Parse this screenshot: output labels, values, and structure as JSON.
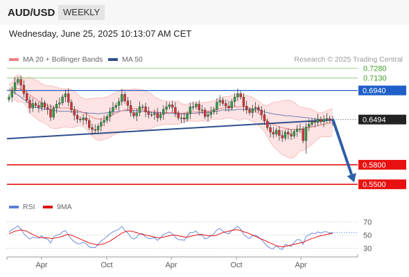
{
  "header": {
    "symbol": "AUD/USD",
    "period": "WEEKLY"
  },
  "datetime": "Wednesday, June 25, 2025 10:13:07 AM CET",
  "legend": {
    "ma20": {
      "label": "MA 20 + Bollinger Bands",
      "color": "#f08080"
    },
    "ma50": {
      "label": "MA 50",
      "color": "#2d4e8c"
    },
    "credit": "Research © 2025 Trading Central"
  },
  "rsi_legend": {
    "rsi": {
      "label": "RSI",
      "color": "#5b7fd6"
    },
    "ma": {
      "label": "9MA",
      "color": "#e01010"
    }
  },
  "chart_data": [
    {
      "type": "candlestick",
      "ylim": [
        0.53,
        0.735
      ],
      "x_ticks": [
        "Apr",
        "Oct",
        "Apr",
        "Oct",
        "Apr"
      ],
      "levels": [
        {
          "value": 0.728,
          "label": "0.7280",
          "kind": "target",
          "color": "#7fc76a"
        },
        {
          "value": 0.713,
          "label": "0.7130",
          "kind": "target",
          "color": "#7fc76a"
        },
        {
          "value": 0.694,
          "label": "0.6940",
          "kind": "resistance",
          "color": "#1f5fc9"
        },
        {
          "value": 0.6494,
          "label": "0.6494",
          "kind": "last",
          "color": "#222222"
        },
        {
          "value": 0.58,
          "label": "0.5800",
          "kind": "support",
          "color": "#e81010"
        },
        {
          "value": 0.55,
          "label": "0.5500",
          "kind": "support",
          "color": "#e81010"
        }
      ],
      "trendline": {
        "from": 0.62,
        "to": 0.649
      },
      "forecast_arrow": {
        "from": 0.65,
        "to": 0.553
      },
      "series": [
        {
          "name": "Price",
          "values": [
            0.684,
            0.694,
            0.706,
            0.711,
            0.702,
            0.689,
            0.679,
            0.667,
            0.674,
            0.671,
            0.668,
            0.675,
            0.668,
            0.665,
            0.653,
            0.667,
            0.673,
            0.675,
            0.684,
            0.689,
            0.676,
            0.664,
            0.656,
            0.65,
            0.649,
            0.652,
            0.648,
            0.637,
            0.634,
            0.633,
            0.639,
            0.645,
            0.648,
            0.654,
            0.662,
            0.668,
            0.671,
            0.677,
            0.688,
            0.678,
            0.671,
            0.66,
            0.655,
            0.66,
            0.669,
            0.669,
            0.661,
            0.657,
            0.657,
            0.659,
            0.652,
            0.657,
            0.665,
            0.669,
            0.672,
            0.668,
            0.659,
            0.652,
            0.652,
            0.65,
            0.658,
            0.669,
            0.669,
            0.673,
            0.664,
            0.664,
            0.654,
            0.657,
            0.661,
            0.665,
            0.676,
            0.679,
            0.674,
            0.67,
            0.667,
            0.677,
            0.684,
            0.689,
            0.684,
            0.67,
            0.664,
            0.66,
            0.666,
            0.668,
            0.664,
            0.657,
            0.647,
            0.637,
            0.63,
            0.627,
            0.633,
            0.625,
            0.621,
            0.63,
            0.627,
            0.624,
            0.631,
            0.635,
            0.635,
            0.617,
            0.638,
            0.642,
            0.646,
            0.645,
            0.65,
            0.646,
            0.65,
            0.651,
            0.648,
            0.649
          ]
        },
        {
          "name": "MA 50",
          "values": [
            0.695,
            0.693,
            0.69,
            0.687,
            0.684,
            0.68,
            0.677,
            0.673,
            0.67,
            0.668,
            0.667,
            0.666,
            0.665,
            0.665,
            0.664,
            0.663,
            0.663,
            0.662,
            0.662,
            0.662,
            0.662,
            0.661,
            0.661,
            0.661,
            0.661,
            0.66,
            0.66,
            0.659,
            0.659,
            0.659,
            0.658,
            0.659,
            0.659,
            0.66,
            0.66,
            0.661,
            0.661,
            0.662,
            0.663,
            0.663,
            0.663,
            0.663,
            0.663,
            0.663,
            0.662,
            0.662,
            0.662,
            0.661,
            0.66,
            0.66,
            0.66,
            0.659,
            0.659,
            0.659,
            0.659,
            0.659,
            0.658,
            0.658,
            0.658,
            0.658,
            0.658,
            0.659,
            0.659,
            0.659,
            0.66,
            0.66,
            0.66,
            0.66,
            0.661,
            0.662,
            0.662,
            0.663,
            0.664,
            0.664,
            0.664,
            0.664,
            0.664,
            0.665,
            0.665,
            0.665,
            0.665,
            0.665,
            0.665,
            0.664,
            0.664,
            0.662,
            0.661,
            0.66,
            0.659,
            0.658,
            0.657,
            0.657,
            0.656,
            0.655,
            0.655,
            0.655,
            0.654,
            0.654,
            0.653,
            0.653,
            0.652,
            0.652,
            0.651,
            0.65,
            0.65,
            0.649,
            0.649,
            0.649,
            0.648,
            0.648
          ]
        },
        {
          "name": "MA 20",
          "values": [
            0.696,
            0.696,
            0.697,
            0.697,
            0.696,
            0.694,
            0.691,
            0.687,
            0.684,
            0.681,
            0.678,
            0.675,
            0.673,
            0.671,
            0.669,
            0.668,
            0.667,
            0.667,
            0.667,
            0.667,
            0.667,
            0.666,
            0.665,
            0.664,
            0.662,
            0.66,
            0.658,
            0.655,
            0.653,
            0.651,
            0.65,
            0.65,
            0.651,
            0.652,
            0.654,
            0.657,
            0.659,
            0.661,
            0.663,
            0.664,
            0.665,
            0.665,
            0.666,
            0.666,
            0.665,
            0.664,
            0.663,
            0.662,
            0.662,
            0.661,
            0.661,
            0.66,
            0.66,
            0.66,
            0.66,
            0.66,
            0.66,
            0.66,
            0.659,
            0.659,
            0.66,
            0.661,
            0.661,
            0.661,
            0.661,
            0.661,
            0.662,
            0.662,
            0.663,
            0.664,
            0.665,
            0.666,
            0.667,
            0.668,
            0.668,
            0.669,
            0.669,
            0.669,
            0.669,
            0.669,
            0.668,
            0.667,
            0.665,
            0.662,
            0.659,
            0.655,
            0.651,
            0.647,
            0.644,
            0.642,
            0.64,
            0.638,
            0.637,
            0.636,
            0.635,
            0.634,
            0.634,
            0.634,
            0.635,
            0.635,
            0.636,
            0.637,
            0.638,
            0.639,
            0.64,
            0.641,
            0.642,
            0.643,
            0.644,
            0.645
          ]
        }
      ]
    },
    {
      "type": "line",
      "name": "RSI panel",
      "ylim": [
        20,
        80
      ],
      "y_ticks": [
        30,
        50,
        70
      ],
      "series": [
        {
          "name": "RSI",
          "values": [
            55,
            58,
            61,
            64,
            59,
            52,
            48,
            44,
            47,
            46,
            45,
            49,
            45,
            44,
            38,
            47,
            50,
            51,
            55,
            57,
            50,
            44,
            40,
            37,
            37,
            39,
            37,
            32,
            31,
            31,
            36,
            41,
            44,
            48,
            52,
            55,
            57,
            59,
            63,
            57,
            53,
            47,
            44,
            47,
            52,
            52,
            47,
            45,
            45,
            46,
            42,
            46,
            51,
            53,
            55,
            52,
            47,
            43,
            43,
            42,
            48,
            54,
            54,
            56,
            50,
            50,
            44,
            46,
            49,
            52,
            58,
            60,
            56,
            53,
            52,
            57,
            60,
            63,
            59,
            51,
            47,
            45,
            49,
            50,
            47,
            43,
            38,
            33,
            30,
            29,
            34,
            30,
            28,
            36,
            34,
            33,
            39,
            43,
            43,
            36,
            48,
            50,
            53,
            52,
            55,
            53,
            55,
            55,
            53,
            54
          ]
        },
        {
          "name": "9MA",
          "values": [
            52,
            54,
            56,
            57,
            58,
            57,
            56,
            53,
            51,
            49,
            47,
            46,
            46,
            46,
            45,
            45,
            46,
            47,
            48,
            50,
            51,
            50,
            48,
            46,
            44,
            42,
            40,
            38,
            37,
            36,
            35,
            36,
            37,
            39,
            41,
            44,
            47,
            50,
            53,
            55,
            56,
            56,
            55,
            54,
            52,
            51,
            50,
            49,
            48,
            47,
            46,
            46,
            47,
            48,
            49,
            50,
            50,
            49,
            48,
            47,
            47,
            48,
            49,
            50,
            51,
            51,
            50,
            49,
            49,
            49,
            50,
            52,
            54,
            55,
            56,
            57,
            58,
            58,
            57,
            55,
            54,
            52,
            50,
            48,
            46,
            44,
            42,
            40,
            38,
            36,
            34,
            33,
            32,
            33,
            34,
            35,
            36,
            37,
            38,
            39,
            41,
            43,
            45,
            46,
            48,
            49,
            50,
            51,
            52,
            53
          ]
        }
      ]
    }
  ]
}
